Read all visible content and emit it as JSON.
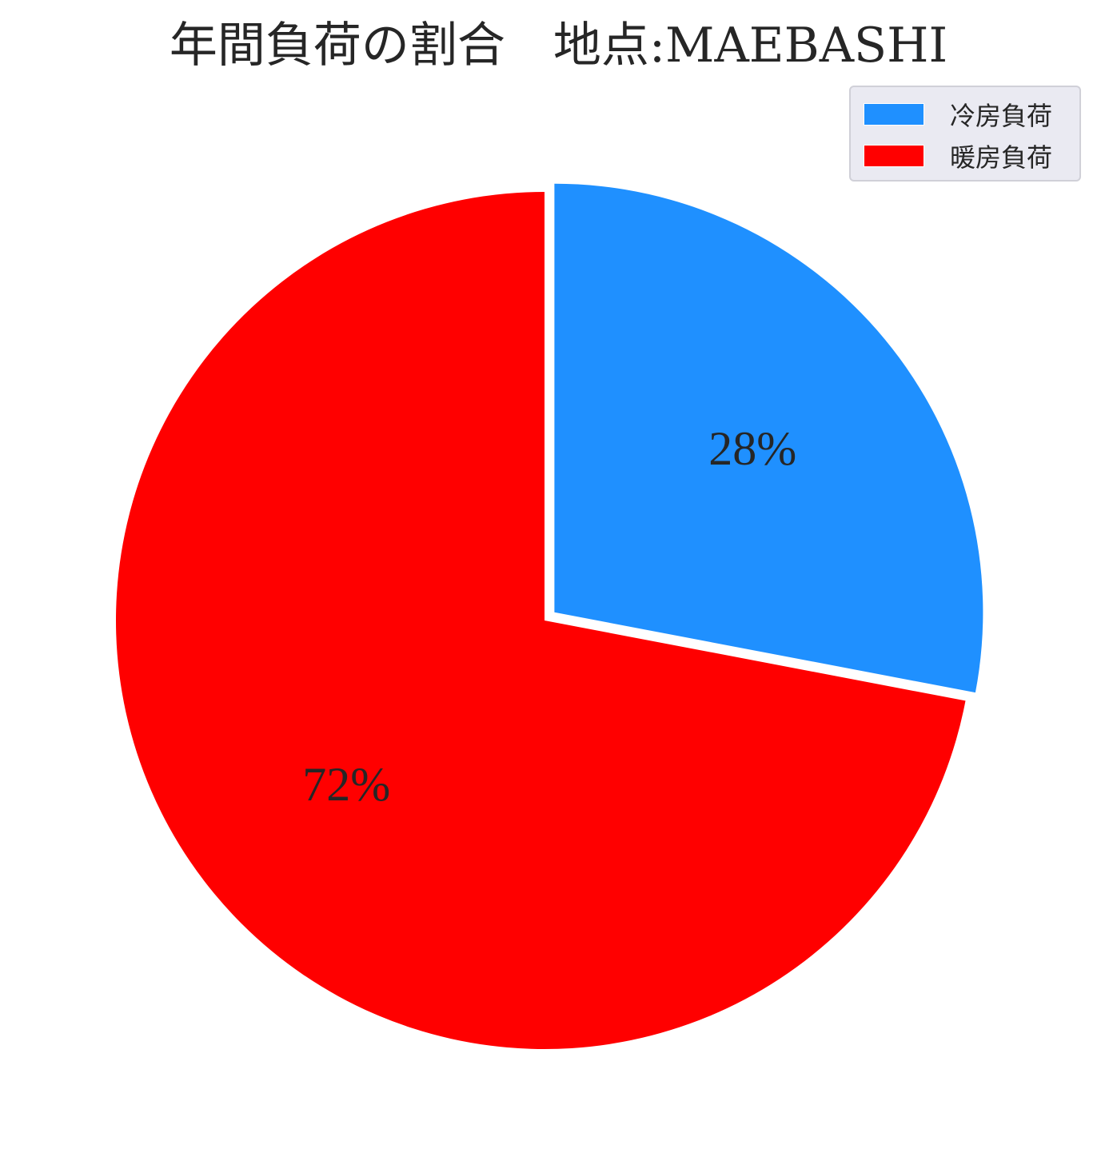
{
  "chart_data": {
    "type": "pie",
    "title": "年間負荷の割合　地点:MAEBASHI",
    "categories": [
      "冷房負荷",
      "暖房負荷"
    ],
    "values": [
      28,
      72
    ],
    "labels": [
      "28%",
      "72%"
    ],
    "colors": [
      "#1f90ff",
      "#ff0000"
    ],
    "explode": [
      0.03,
      0
    ],
    "start_angle_deg": 90,
    "direction": "clockwise",
    "legend": {
      "position": "top-right",
      "entries": [
        "冷房負荷",
        "暖房負荷"
      ]
    }
  }
}
